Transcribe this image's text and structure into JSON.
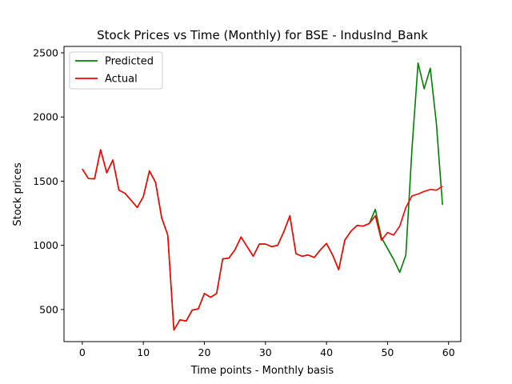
{
  "chart_data": {
    "type": "line",
    "title": "Stock Prices vs Time (Monthly) for BSE - IndusInd_Bank",
    "xlabel": "Time points - Monthly basis",
    "ylabel": "Stock prices",
    "xlim": [
      -3,
      62
    ],
    "ylim": [
      250,
      2550
    ],
    "xticks": [
      0,
      10,
      20,
      30,
      40,
      50,
      60
    ],
    "yticks": [
      500,
      1000,
      1500,
      2000,
      2500
    ],
    "grid": false,
    "legend_position": "top-left",
    "series": [
      {
        "name": "Predicted",
        "color": "#008000",
        "x": [
          0,
          1,
          2,
          3,
          4,
          5,
          6,
          7,
          8,
          9,
          10,
          11,
          12,
          13,
          14,
          15,
          16,
          17,
          18,
          19,
          20,
          21,
          22,
          23,
          24,
          25,
          26,
          27,
          28,
          29,
          30,
          31,
          32,
          33,
          34,
          35,
          36,
          37,
          38,
          39,
          40,
          41,
          42,
          43,
          44,
          45,
          46,
          47,
          48,
          49,
          50,
          51,
          52,
          53,
          54,
          55,
          56,
          57,
          58,
          59
        ],
        "y": [
          1595,
          1520,
          1518,
          1745,
          1565,
          1665,
          1430,
          1405,
          1350,
          1295,
          1380,
          1580,
          1490,
          1215,
          1080,
          340,
          420,
          410,
          495,
          505,
          625,
          595,
          625,
          895,
          900,
          965,
          1065,
          990,
          915,
          1010,
          1010,
          990,
          1000,
          1105,
          1230,
          935,
          915,
          925,
          905,
          965,
          1015,
          925,
          810,
          1040,
          1110,
          1155,
          1150,
          1170,
          1280,
          1060,
          975,
          890,
          790,
          925,
          1750,
          2420,
          2220,
          2380,
          1950,
          1315
        ]
      },
      {
        "name": "Actual",
        "color": "#ff0000",
        "x": [
          0,
          1,
          2,
          3,
          4,
          5,
          6,
          7,
          8,
          9,
          10,
          11,
          12,
          13,
          14,
          15,
          16,
          17,
          18,
          19,
          20,
          21,
          22,
          23,
          24,
          25,
          26,
          27,
          28,
          29,
          30,
          31,
          32,
          33,
          34,
          35,
          36,
          37,
          38,
          39,
          40,
          41,
          42,
          43,
          44,
          45,
          46,
          47,
          48,
          49,
          50,
          51,
          52,
          53,
          54,
          55,
          56,
          57,
          58,
          59
        ],
        "y": [
          1595,
          1520,
          1518,
          1745,
          1565,
          1665,
          1430,
          1405,
          1350,
          1295,
          1380,
          1580,
          1490,
          1215,
          1080,
          340,
          420,
          410,
          495,
          505,
          625,
          595,
          625,
          895,
          900,
          965,
          1065,
          990,
          915,
          1010,
          1010,
          990,
          1000,
          1105,
          1230,
          935,
          915,
          925,
          905,
          965,
          1015,
          925,
          810,
          1040,
          1110,
          1155,
          1150,
          1170,
          1230,
          1040,
          1100,
          1080,
          1150,
          1295,
          1385,
          1400,
          1420,
          1435,
          1430,
          1460
        ]
      }
    ]
  }
}
